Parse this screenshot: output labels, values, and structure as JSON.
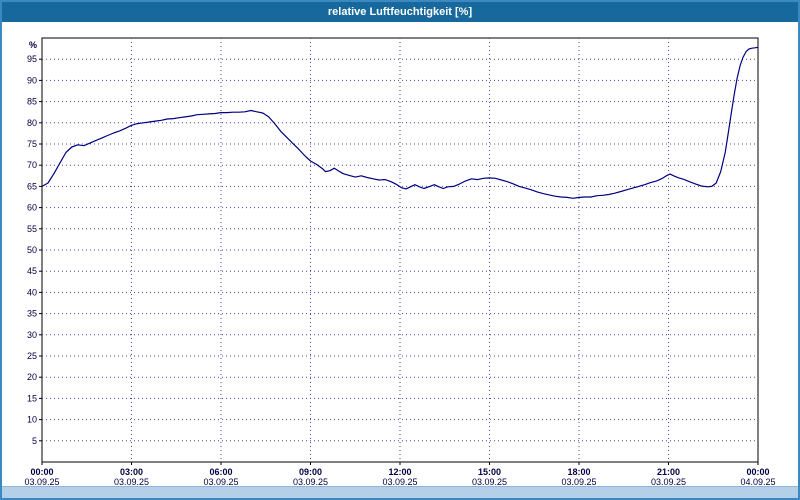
{
  "window": {
    "title": "relative Luftfeuchtigkeit [%]"
  },
  "colors": {
    "titlebar_bg": "#17689c",
    "window_border": "#3c88c0",
    "scrollbar_bg": "#b4d0e8",
    "plot_border": "#000000",
    "grid": "#4646b4",
    "axis_text": "#000040",
    "line": "#000080"
  },
  "chart_data": {
    "type": "line",
    "title": "relative Luftfeuchtigkeit [%]",
    "ylabel": "%",
    "xlabel": "",
    "ylim": [
      0,
      100
    ],
    "xlim_hours": [
      0,
      24
    ],
    "grid": "dotted",
    "legend_position": "none",
    "y_ticks": [
      5,
      10,
      15,
      20,
      25,
      30,
      35,
      40,
      45,
      50,
      55,
      60,
      65,
      70,
      75,
      80,
      85,
      90,
      95
    ],
    "x_ticks": [
      {
        "hour": 0,
        "time": "00:00",
        "date": "03.09.25"
      },
      {
        "hour": 3,
        "time": "03:00",
        "date": "03.09.25"
      },
      {
        "hour": 6,
        "time": "06:00",
        "date": "03.09.25"
      },
      {
        "hour": 9,
        "time": "09:00",
        "date": "03.09.25"
      },
      {
        "hour": 12,
        "time": "12:00",
        "date": "03.09.25"
      },
      {
        "hour": 15,
        "time": "15:00",
        "date": "03.09.25"
      },
      {
        "hour": 18,
        "time": "18:00",
        "date": "03.09.25"
      },
      {
        "hour": 21,
        "time": "21:00",
        "date": "03.09.25"
      },
      {
        "hour": 24,
        "time": "00:00",
        "date": "04.09.25"
      }
    ],
    "series": [
      {
        "name": "relative Luftfeuchtigkeit",
        "color": "#000080",
        "points": [
          [
            0,
            65
          ],
          [
            0.2,
            65.8
          ],
          [
            0.4,
            68
          ],
          [
            0.6,
            70.5
          ],
          [
            0.8,
            73
          ],
          [
            1,
            74.3
          ],
          [
            1.2,
            74.8
          ],
          [
            1.4,
            74.6
          ],
          [
            1.6,
            75.2
          ],
          [
            1.8,
            75.8
          ],
          [
            2,
            76.4
          ],
          [
            2.2,
            77
          ],
          [
            2.4,
            77.6
          ],
          [
            2.6,
            78.1
          ],
          [
            2.8,
            78.7
          ],
          [
            3,
            79.4
          ],
          [
            3.2,
            79.8
          ],
          [
            3.4,
            80
          ],
          [
            3.6,
            80.2
          ],
          [
            3.8,
            80.4
          ],
          [
            4,
            80.6
          ],
          [
            4.2,
            80.9
          ],
          [
            4.4,
            81
          ],
          [
            4.6,
            81.2
          ],
          [
            4.8,
            81.4
          ],
          [
            5,
            81.6
          ],
          [
            5.2,
            81.9
          ],
          [
            5.4,
            82
          ],
          [
            5.6,
            82.1
          ],
          [
            5.8,
            82.2
          ],
          [
            6,
            82.4
          ],
          [
            6.2,
            82.4
          ],
          [
            6.4,
            82.5
          ],
          [
            6.6,
            82.5
          ],
          [
            6.8,
            82.6
          ],
          [
            7,
            82.9
          ],
          [
            7.2,
            82.6
          ],
          [
            7.4,
            82.3
          ],
          [
            7.6,
            81.4
          ],
          [
            7.8,
            79.8
          ],
          [
            8,
            78
          ],
          [
            8.2,
            76.6
          ],
          [
            8.4,
            75.2
          ],
          [
            8.6,
            73.8
          ],
          [
            8.8,
            72.3
          ],
          [
            9,
            71
          ],
          [
            9.2,
            70.2
          ],
          [
            9.4,
            69.2
          ],
          [
            9.5,
            68.5
          ],
          [
            9.65,
            68.7
          ],
          [
            9.8,
            69.3
          ],
          [
            9.95,
            68.6
          ],
          [
            10.1,
            68
          ],
          [
            10.3,
            67.6
          ],
          [
            10.5,
            67.2
          ],
          [
            10.7,
            67.5
          ],
          [
            10.9,
            67.1
          ],
          [
            11.1,
            66.8
          ],
          [
            11.3,
            66.5
          ],
          [
            11.5,
            66.6
          ],
          [
            11.7,
            66.1
          ],
          [
            11.9,
            65.4
          ],
          [
            12.05,
            64.7
          ],
          [
            12.2,
            64.4
          ],
          [
            12.35,
            64.9
          ],
          [
            12.5,
            65.4
          ],
          [
            12.65,
            64.9
          ],
          [
            12.8,
            64.5
          ],
          [
            13,
            65
          ],
          [
            13.15,
            65.4
          ],
          [
            13.3,
            64.9
          ],
          [
            13.45,
            64.5
          ],
          [
            13.6,
            64.9
          ],
          [
            13.8,
            65
          ],
          [
            14,
            65.6
          ],
          [
            14.2,
            66.3
          ],
          [
            14.4,
            66.8
          ],
          [
            14.6,
            66.6
          ],
          [
            14.8,
            66.9
          ],
          [
            15,
            67
          ],
          [
            15.2,
            66.9
          ],
          [
            15.4,
            66.5
          ],
          [
            15.6,
            66.1
          ],
          [
            15.8,
            65.6
          ],
          [
            16,
            65
          ],
          [
            16.2,
            64.6
          ],
          [
            16.4,
            64.2
          ],
          [
            16.6,
            63.7
          ],
          [
            16.8,
            63.3
          ],
          [
            17,
            63
          ],
          [
            17.2,
            62.7
          ],
          [
            17.4,
            62.5
          ],
          [
            17.6,
            62.4
          ],
          [
            17.8,
            62.2
          ],
          [
            18,
            62.4
          ],
          [
            18.2,
            62.5
          ],
          [
            18.4,
            62.5
          ],
          [
            18.6,
            62.8
          ],
          [
            18.8,
            62.9
          ],
          [
            19,
            63.1
          ],
          [
            19.2,
            63.4
          ],
          [
            19.4,
            63.8
          ],
          [
            19.6,
            64.2
          ],
          [
            19.8,
            64.6
          ],
          [
            20,
            65
          ],
          [
            20.2,
            65.4
          ],
          [
            20.4,
            65.9
          ],
          [
            20.6,
            66.3
          ],
          [
            20.8,
            66.9
          ],
          [
            20.95,
            67.6
          ],
          [
            21.05,
            67.9
          ],
          [
            21.2,
            67.4
          ],
          [
            21.35,
            67
          ],
          [
            21.5,
            66.7
          ],
          [
            21.7,
            66.1
          ],
          [
            21.9,
            65.6
          ],
          [
            22.1,
            65.1
          ],
          [
            22.3,
            64.9
          ],
          [
            22.45,
            65
          ],
          [
            22.6,
            65.8
          ],
          [
            22.75,
            68.5
          ],
          [
            22.9,
            73
          ],
          [
            23,
            77.5
          ],
          [
            23.1,
            82
          ],
          [
            23.2,
            86.5
          ],
          [
            23.3,
            90.5
          ],
          [
            23.4,
            93.5
          ],
          [
            23.5,
            95.5
          ],
          [
            23.6,
            96.8
          ],
          [
            23.7,
            97.4
          ],
          [
            23.8,
            97.6
          ],
          [
            23.9,
            97.7
          ],
          [
            24,
            97.8
          ]
        ]
      }
    ]
  }
}
